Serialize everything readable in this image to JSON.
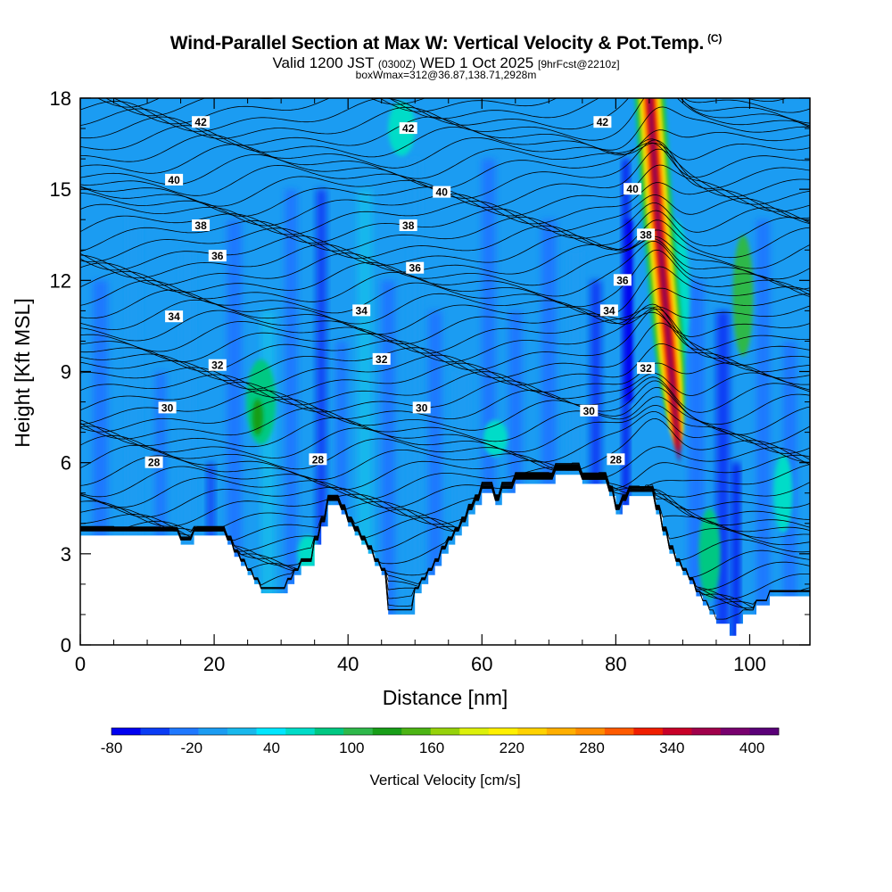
{
  "header": {
    "title": "Wind-Parallel Section at Max W: Vertical Velocity & Pot.Temp.",
    "title_corner": "(C)",
    "valid_prefix": "Valid 1200 JST",
    "valid_utc": "(0300Z)",
    "valid_date": "WED 1 Oct 2025",
    "valid_fcst": "[9hrFcst@2210z]",
    "box_info": "boxWmax=312@36.87,138.71,2928m"
  },
  "chart_data": {
    "type": "heatmap",
    "title": "Wind-Parallel Section at Max W: Vertical Velocity & Pot.Temp.",
    "xlabel": "Distance [nm]",
    "ylabel": "Height [Kft MSL]",
    "xlim": [
      0,
      109
    ],
    "ylim": [
      0,
      18
    ],
    "xticks": [
      0,
      20,
      40,
      60,
      80,
      100
    ],
    "yticks": [
      0,
      3,
      6,
      9,
      12,
      15,
      18
    ],
    "colorbar": {
      "title": "Vertical Velocity [cm/s]",
      "ticks": [
        -80,
        -20,
        40,
        100,
        160,
        220,
        280,
        340,
        400
      ],
      "range": [
        -80,
        420
      ],
      "colors": [
        "#0000f0",
        "#0a3cf5",
        "#1f78ff",
        "#1b9cf2",
        "#18b8ec",
        "#00e6ff",
        "#00dcc8",
        "#00c882",
        "#2eb84a",
        "#189e18",
        "#4cb414",
        "#96d20a",
        "#dcf00a",
        "#fff000",
        "#ffd200",
        "#ffaf00",
        "#ff8c00",
        "#ff5a00",
        "#f01e00",
        "#c80028",
        "#a0004b",
        "#78006e",
        "#5a0078"
      ]
    },
    "theta_contours": [
      {
        "value": 28,
        "height": 6.0
      },
      {
        "value": 30,
        "height": 7.7
      },
      {
        "value": 32,
        "height": 9.2
      },
      {
        "value": 34,
        "height": 10.8
      },
      {
        "value": 36,
        "height": 12.6
      },
      {
        "value": 38,
        "height": 13.8
      },
      {
        "value": 40,
        "height": 15.3
      },
      {
        "value": 42,
        "height": 17.1
      }
    ],
    "contour_labels": [
      {
        "text": "42",
        "x": 18,
        "y": 17.2
      },
      {
        "text": "42",
        "x": 49,
        "y": 17.0
      },
      {
        "text": "42",
        "x": 78,
        "y": 17.2
      },
      {
        "text": "40",
        "x": 14,
        "y": 15.3
      },
      {
        "text": "40",
        "x": 54,
        "y": 14.9
      },
      {
        "text": "40",
        "x": 82.5,
        "y": 15.0
      },
      {
        "text": "38",
        "x": 18,
        "y": 13.8
      },
      {
        "text": "38",
        "x": 49,
        "y": 13.8
      },
      {
        "text": "38",
        "x": 84.5,
        "y": 13.5
      },
      {
        "text": "36",
        "x": 20.5,
        "y": 12.8
      },
      {
        "text": "36",
        "x": 50,
        "y": 12.4
      },
      {
        "text": "36",
        "x": 81,
        "y": 12.0
      },
      {
        "text": "34",
        "x": 14,
        "y": 10.8
      },
      {
        "text": "34",
        "x": 42,
        "y": 11.0
      },
      {
        "text": "34",
        "x": 79,
        "y": 11.0
      },
      {
        "text": "32",
        "x": 20.5,
        "y": 9.2
      },
      {
        "text": "32",
        "x": 45,
        "y": 9.4
      },
      {
        "text": "32",
        "x": 84.5,
        "y": 9.1
      },
      {
        "text": "30",
        "x": 13,
        "y": 7.8
      },
      {
        "text": "30",
        "x": 51,
        "y": 7.8
      },
      {
        "text": "30",
        "x": 76,
        "y": 7.7
      },
      {
        "text": "28",
        "x": 11,
        "y": 6.0
      },
      {
        "text": "28",
        "x": 35.5,
        "y": 6.1
      },
      {
        "text": "28",
        "x": 80,
        "y": 6.1
      }
    ],
    "updraft_max": {
      "x": 84.5,
      "value": 400
    },
    "downdraft_max": {
      "x": 82,
      "value": -80
    },
    "terrain": {
      "x": [
        0,
        14,
        15,
        16,
        17,
        21,
        22,
        23,
        24,
        25,
        26,
        27,
        30,
        31,
        32,
        33,
        35,
        36,
        37,
        38,
        39,
        40,
        41,
        42,
        43,
        44,
        45,
        46,
        49,
        50,
        51,
        52,
        53,
        54,
        55,
        56,
        57,
        58,
        59,
        60,
        61,
        62,
        63,
        64,
        65,
        66,
        67,
        68,
        69,
        70,
        71,
        72,
        73,
        74,
        75,
        76,
        77,
        78,
        79,
        80,
        81,
        82,
        83,
        84,
        85,
        86,
        87,
        88,
        89,
        90,
        91,
        92,
        93,
        94,
        95,
        96,
        97,
        98,
        99,
        100,
        101,
        102,
        103,
        104,
        105,
        106,
        107,
        109
      ],
      "h": [
        3.6,
        3.6,
        3.3,
        3.3,
        3.6,
        3.6,
        3.3,
        2.9,
        2.6,
        2.3,
        2.0,
        1.7,
        1.7,
        2.0,
        2.3,
        2.6,
        3.3,
        3.9,
        4.6,
        4.6,
        4.3,
        3.9,
        3.6,
        3.3,
        3.0,
        2.6,
        2.3,
        1.0,
        1.0,
        1.7,
        2.0,
        2.3,
        2.6,
        3.0,
        3.3,
        3.6,
        3.9,
        4.3,
        4.6,
        5.0,
        5.0,
        4.6,
        5.0,
        5.0,
        5.3,
        5.3,
        5.3,
        5.3,
        5.3,
        5.3,
        5.6,
        5.6,
        5.6,
        5.6,
        5.3,
        5.3,
        5.3,
        5.3,
        4.9,
        4.3,
        4.6,
        4.9,
        4.9,
        4.9,
        4.9,
        4.3,
        3.6,
        3.0,
        2.6,
        2.3,
        2.0,
        1.6,
        1.3,
        1.0,
        0.7,
        0.7,
        0.3,
        0.7,
        1.0,
        1.0,
        1.3,
        1.3,
        1.6,
        1.6,
        1.6,
        1.6,
        1.6,
        1.6
      ]
    }
  }
}
